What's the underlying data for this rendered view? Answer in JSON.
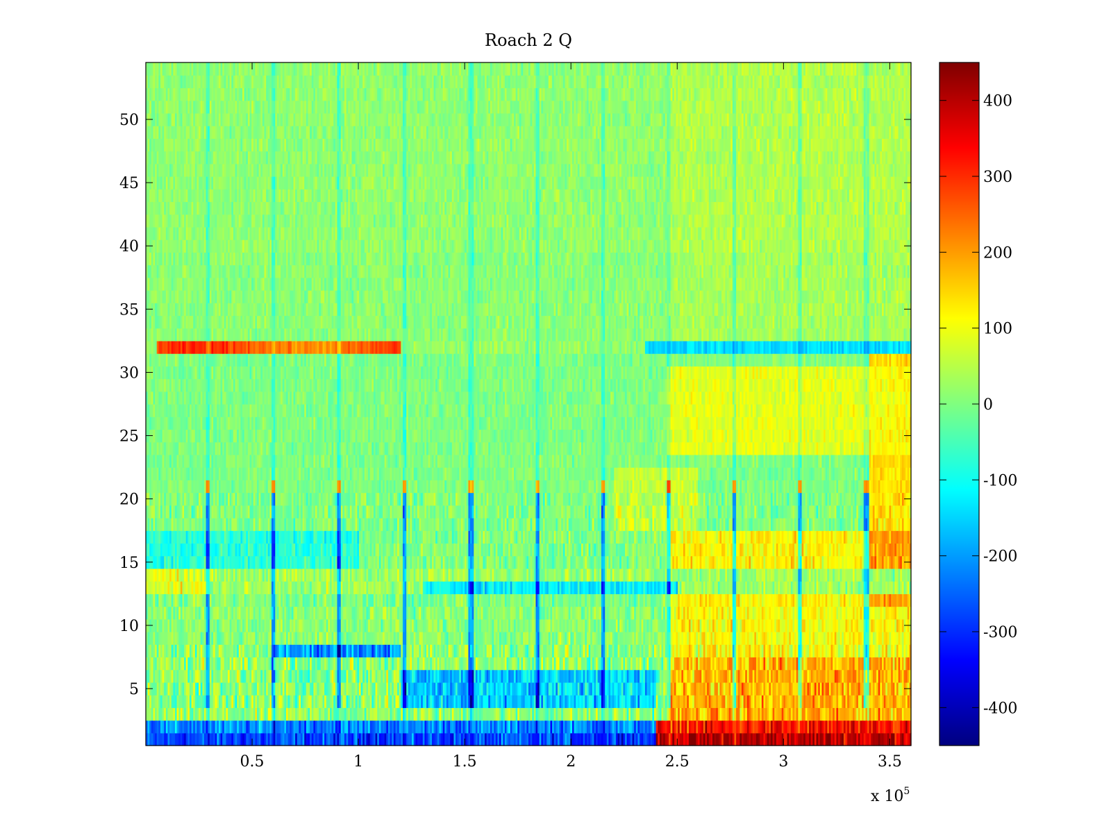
{
  "chart_data": {
    "type": "heatmap",
    "title": "Roach 2 Q",
    "xlabel": "",
    "ylabel": "",
    "x_multiplier_label": {
      "base": "x 10",
      "exponent": "5"
    },
    "xlim": [
      0,
      3.6
    ],
    "ylim": [
      0.5,
      54.5
    ],
    "xticks": [
      0.5,
      1,
      1.5,
      2,
      2.5,
      3,
      3.5
    ],
    "xtick_labels": [
      "0.5",
      "1",
      "1.5",
      "2",
      "2.5",
      "3",
      "3.5"
    ],
    "yticks": [
      5,
      10,
      15,
      20,
      25,
      30,
      35,
      40,
      45,
      50
    ],
    "ytick_labels": [
      "5",
      "10",
      "15",
      "20",
      "25",
      "30",
      "35",
      "40",
      "45",
      "50"
    ],
    "rows": 54,
    "colorbar": {
      "colormap": "jet",
      "clim": [
        -450,
        450
      ],
      "ticks": [
        400,
        300,
        200,
        100,
        0,
        -100,
        -200,
        -300,
        -400
      ],
      "tick_labels": [
        "400",
        "300",
        "200",
        "100",
        "0",
        "-100",
        "-200",
        "-300",
        "-400"
      ]
    },
    "features": {
      "hot_band": {
        "row": 32,
        "x_range": [
          0.05,
          1.2
        ],
        "value": 300
      },
      "cold_band": {
        "row": 32,
        "x_range": [
          2.35,
          3.6
        ],
        "value": -140
      },
      "warm_region_right": {
        "rows": [
          24,
          30
        ],
        "x_range": [
          2.45,
          3.4
        ],
        "value": 90
      },
      "bottom_cold": {
        "rows": [
          1,
          2
        ],
        "x_range": [
          0,
          2.4
        ],
        "value": -280
      },
      "bottom_hot": {
        "rows": [
          1,
          2
        ],
        "x_range": [
          2.5,
          3.6
        ],
        "value": 320
      },
      "vertical_stripe_positions": [
        0.29,
        0.6,
        0.91,
        1.22,
        1.53,
        1.84,
        2.15,
        2.46,
        2.77,
        3.08,
        3.39
      ]
    }
  }
}
